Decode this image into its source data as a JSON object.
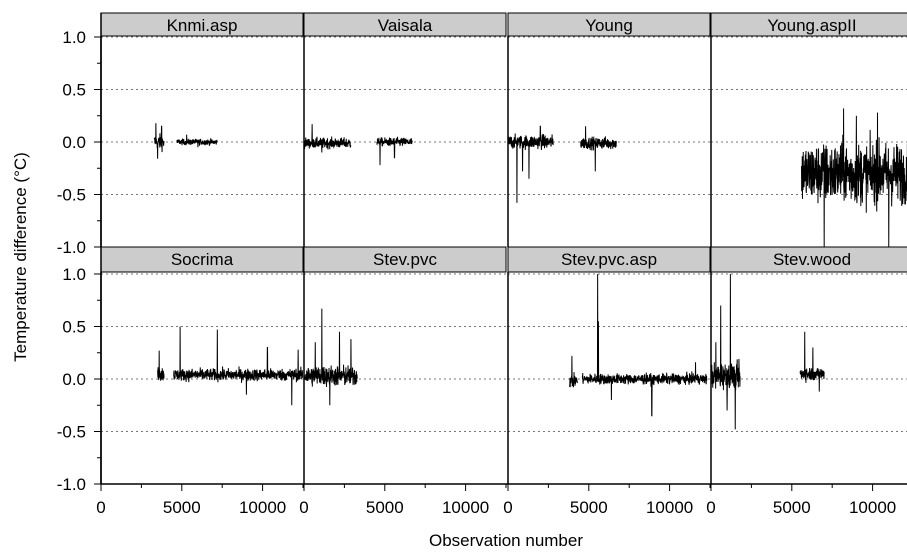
{
  "chart_data": {
    "type": "line",
    "layout": "trellis 2 rows x 4 columns",
    "xlabel": "Observation number",
    "ylabel": "Temperature difference (°C)",
    "xlim": [
      0,
      12500
    ],
    "ylim": [
      -1.0,
      1.0
    ],
    "x_ticks": [
      0,
      5000,
      10000
    ],
    "x_tick_labels": [
      "0",
      "5000",
      "10000"
    ],
    "y_ticks": [
      -1.0,
      -0.5,
      0.0,
      0.5,
      1.0
    ],
    "y_tick_labels": [
      "-1.0",
      "-0.5",
      "0.0",
      "0.5",
      "1.0"
    ],
    "gridlines": "dotted horizontal at -1.0, -0.5, 0.0, 0.5, 1.0",
    "strip_color": "#cccccc",
    "line_color": "#000000",
    "panels": [
      {
        "name": "Knmi.asp",
        "segments": [
          {
            "x_start": 3300,
            "x_end": 3900,
            "center": 0.0,
            "amplitude": 0.09,
            "spikes": [
              [
                3400,
                0.18
              ],
              [
                3500,
                -0.16
              ],
              [
                3750,
                0.15
              ]
            ]
          },
          {
            "x_start": 4700,
            "x_end": 7200,
            "center": 0.0,
            "amplitude": 0.035,
            "spikes": [
              [
                5300,
                0.07
              ],
              [
                6000,
                -0.05
              ]
            ]
          }
        ]
      },
      {
        "name": "Vaisala",
        "segments": [
          {
            "x_start": 0,
            "x_end": 2900,
            "center": -0.01,
            "amplitude": 0.06,
            "spikes": [
              [
                500,
                0.17
              ],
              [
                1100,
                -0.1
              ]
            ]
          },
          {
            "x_start": 4500,
            "x_end": 6700,
            "center": 0.0,
            "amplitude": 0.05,
            "spikes": [
              [
                4700,
                -0.22
              ],
              [
                5600,
                -0.15
              ]
            ]
          }
        ]
      },
      {
        "name": "Young",
        "segments": [
          {
            "x_start": 0,
            "x_end": 2800,
            "center": 0.0,
            "amplitude": 0.08,
            "spikes": [
              [
                550,
                -0.58
              ],
              [
                1300,
                0.45
              ],
              [
                1300,
                -0.35
              ],
              [
                2000,
                0.15
              ],
              [
                900,
                -0.28
              ]
            ]
          },
          {
            "x_start": 4500,
            "x_end": 6700,
            "center": -0.01,
            "amplitude": 0.07,
            "spikes": [
              [
                5400,
                -0.28
              ],
              [
                4800,
                0.15
              ]
            ]
          }
        ]
      },
      {
        "name": "Young.aspII",
        "segments": [
          {
            "x_start": 5600,
            "x_end": 12500,
            "center": -0.3,
            "amplitude": 0.35,
            "spikes": [
              [
                7000,
                -1.0
              ],
              [
                9000,
                0.25
              ],
              [
                11000,
                -1.0
              ],
              [
                12200,
                0.3
              ],
              [
                8200,
                0.32
              ],
              [
                10300,
                0.28
              ]
            ]
          }
        ]
      },
      {
        "name": "Socrima",
        "segments": [
          {
            "x_start": 3500,
            "x_end": 3900,
            "center": 0.05,
            "amplitude": 0.09,
            "spikes": [
              [
                3600,
                0.27
              ]
            ]
          },
          {
            "x_start": 4500,
            "x_end": 12500,
            "center": 0.04,
            "amplitude": 0.07,
            "spikes": [
              [
                4900,
                0.5
              ],
              [
                7200,
                0.47
              ],
              [
                10300,
                0.3
              ],
              [
                11800,
                -0.25
              ],
              [
                12200,
                0.28
              ],
              [
                9000,
                -0.15
              ]
            ]
          }
        ]
      },
      {
        "name": "Stev.pvc",
        "segments": [
          {
            "x_start": 0,
            "x_end": 3300,
            "center": 0.03,
            "amplitude": 0.12,
            "spikes": [
              [
                1100,
                0.67
              ],
              [
                2200,
                0.45
              ],
              [
                2900,
                0.38
              ],
              [
                1600,
                -0.25
              ],
              [
                700,
                0.35
              ]
            ]
          }
        ]
      },
      {
        "name": "Stev.pvc.asp",
        "segments": [
          {
            "x_start": 3800,
            "x_end": 4300,
            "center": -0.02,
            "amplitude": 0.08,
            "spikes": [
              [
                3950,
                0.22
              ]
            ]
          },
          {
            "x_start": 4600,
            "x_end": 12300,
            "center": 0.0,
            "amplitude": 0.06,
            "spikes": [
              [
                5550,
                1.0
              ],
              [
                5600,
                0.55
              ],
              [
                8900,
                -0.35
              ],
              [
                6400,
                -0.2
              ],
              [
                11600,
                0.16
              ]
            ]
          }
        ]
      },
      {
        "name": "Stev.wood",
        "segments": [
          {
            "x_start": 0,
            "x_end": 1800,
            "center": 0.03,
            "amplitude": 0.15,
            "spikes": [
              [
                600,
                0.7
              ],
              [
                1200,
                1.0
              ],
              [
                1500,
                -0.48
              ],
              [
                300,
                0.35
              ],
              [
                1000,
                -0.3
              ]
            ]
          },
          {
            "x_start": 5500,
            "x_end": 7000,
            "center": 0.05,
            "amplitude": 0.08,
            "spikes": [
              [
                5800,
                0.45
              ],
              [
                6300,
                0.3
              ],
              [
                6700,
                -0.12
              ]
            ]
          }
        ]
      }
    ]
  }
}
